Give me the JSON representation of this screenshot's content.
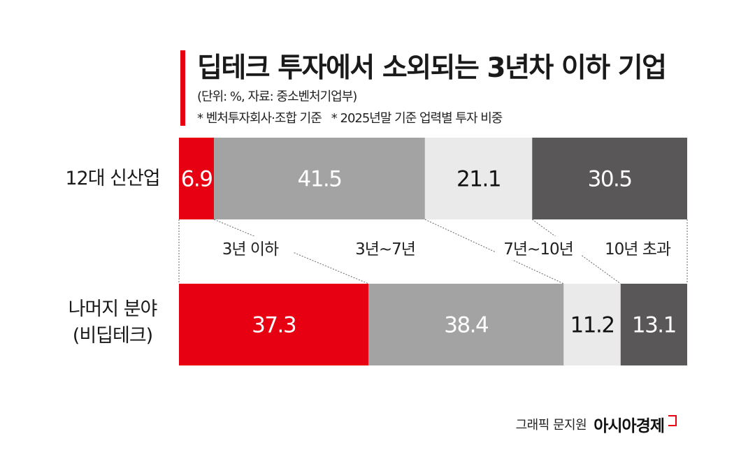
{
  "title": "딥테크 투자에서 소외되는 3년차 이하 기업",
  "notes": {
    "unit_source": "(단위: %, 자료: 중소벤처기업부)",
    "footnote_1": "* 벤처투자회사·조합 기준",
    "footnote_2": "* 2025년말 기준 업력별 투자 비중"
  },
  "credit": {
    "graphic": "그래픽 문지원",
    "brand": "아시아경제"
  },
  "colors": {
    "accent": "#e60012",
    "series": [
      "#e60012",
      "#a3a3a3",
      "#e9eae9",
      "#595757"
    ],
    "label_text": [
      "#ffffff",
      "#ffffff",
      "#111111",
      "#ffffff"
    ]
  },
  "chart_data": {
    "type": "bar",
    "orientation": "horizontal",
    "stacked": true,
    "unit": "%",
    "categories": [
      "12대 신산업",
      "나머지 분야 (비딥테크)"
    ],
    "category_lines": [
      [
        "12대 신산업"
      ],
      [
        "나머지 분야",
        "(비딥테크)"
      ]
    ],
    "series": [
      {
        "name": "3년 이하",
        "values": [
          6.9,
          37.3
        ]
      },
      {
        "name": "3년~7년",
        "values": [
          41.5,
          38.4
        ]
      },
      {
        "name": "7년~10년",
        "values": [
          21.1,
          11.2
        ]
      },
      {
        "name": "10년 초과",
        "values": [
          30.5,
          13.1
        ]
      }
    ],
    "data_labels": [
      [
        "6.9",
        "37.3"
      ],
      [
        "41.5",
        "38.4"
      ],
      [
        "21.1",
        "11.2"
      ],
      [
        "30.5",
        "13.1"
      ]
    ],
    "xlim": [
      0,
      100
    ],
    "grid": false,
    "legend": "between-bars"
  }
}
